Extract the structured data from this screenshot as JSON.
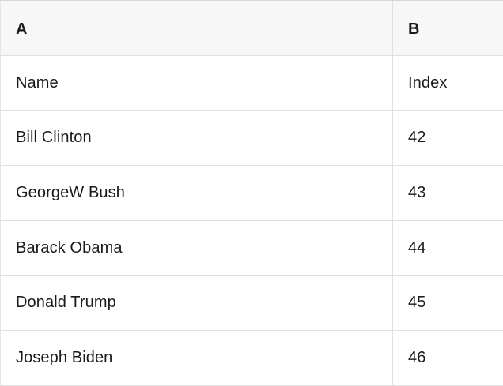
{
  "table": {
    "columns": [
      {
        "label": "A"
      },
      {
        "label": "B"
      }
    ],
    "rows": [
      [
        "Name",
        "Index"
      ],
      [
        "Bill Clinton",
        "42"
      ],
      [
        "GeorgeW Bush",
        "43"
      ],
      [
        "Barack Obama",
        "44"
      ],
      [
        "Donald Trump",
        "45"
      ],
      [
        "Joseph Biden",
        "46"
      ]
    ],
    "colors": {
      "header_bg": "#f7f7f7",
      "row_bg": "#ffffff",
      "border": "#e0e0e0",
      "text": "#1a1a1a"
    }
  }
}
